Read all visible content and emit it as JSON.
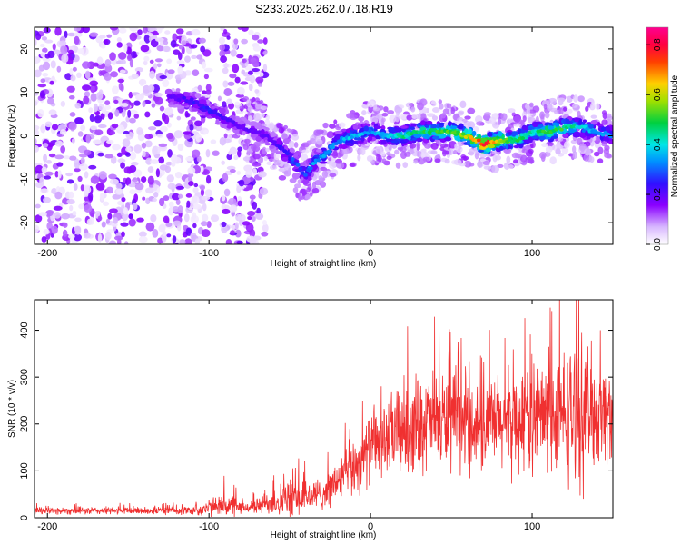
{
  "chart_data": [
    {
      "type": "heatmap",
      "title": "S233.2025.262.07.18.R19",
      "xlabel": "Height of straight line (km)",
      "ylabel": "Frequency (Hz)",
      "xlim": [
        -208,
        150
      ],
      "ylim": [
        -25,
        25
      ],
      "xticks": [
        -200,
        -100,
        0,
        100
      ],
      "xtick_labels": [
        "-200",
        "-100",
        "0",
        "100"
      ],
      "yticks": [
        -20,
        -10,
        0,
        10,
        20
      ],
      "ytick_labels": [
        "-20",
        "-10",
        "0",
        "10",
        "20"
      ],
      "colorbar": {
        "label": "Normalized spectral amplitude",
        "range": [
          0.0,
          0.87
        ],
        "ticks": [
          0.0,
          0.2,
          0.4,
          0.6,
          0.8
        ],
        "tick_labels": [
          "0.0",
          "0.2",
          "0.4",
          "0.6",
          "0.8"
        ],
        "colormap": "rainbow (white-violet-blue-cyan-green-yellow-red-magenta)"
      },
      "ridge": {
        "description": "frequency-vs-height trace of strongest amplitude",
        "x": [
          -125,
          -110,
          -95,
          -80,
          -65,
          -55,
          -45,
          -40,
          -35,
          -30,
          -20,
          -10,
          0,
          10,
          20,
          30,
          40,
          50,
          60,
          70,
          80,
          90,
          100,
          110,
          120,
          130,
          140,
          150
        ],
        "freq": [
          9,
          8,
          5,
          2,
          0,
          -3,
          -7,
          -9,
          -6,
          -5,
          -1,
          0,
          1,
          0,
          0,
          1,
          1,
          1,
          0,
          -2,
          -1,
          -1,
          1,
          1,
          2,
          2,
          1,
          0
        ],
        "amplitude": [
          0.2,
          0.25,
          0.25,
          0.2,
          0.2,
          0.25,
          0.3,
          0.3,
          0.35,
          0.35,
          0.35,
          0.4,
          0.35,
          0.4,
          0.45,
          0.5,
          0.5,
          0.55,
          0.6,
          0.85,
          0.6,
          0.5,
          0.45,
          0.55,
          0.5,
          0.4,
          0.35,
          0.35
        ]
      },
      "noise_region": {
        "x_range": [
          -208,
          -65
        ],
        "freq_range": [
          -25,
          25
        ],
        "amplitude_range": [
          0.02,
          0.2
        ]
      }
    },
    {
      "type": "line",
      "xlabel": "Height of straight line (km)",
      "ylabel": "SNR (10 * v/v)",
      "xlim": [
        -208,
        150
      ],
      "ylim": [
        0,
        465
      ],
      "xticks": [
        -200,
        -100,
        0,
        100
      ],
      "xtick_labels": [
        "-200",
        "-100",
        "0",
        "100"
      ],
      "yticks": [
        0,
        100,
        200,
        300,
        400
      ],
      "ytick_labels": [
        "0",
        "100",
        "200",
        "300",
        "400"
      ],
      "color": "#f03030",
      "series": [
        {
          "name": "SNR",
          "envelope_x": [
            -208,
            -150,
            -110,
            -100,
            -95,
            -90,
            -80,
            -70,
            -60,
            -50,
            -40,
            -30,
            -20,
            -10,
            0,
            10,
            20,
            30,
            40,
            50,
            60,
            70,
            80,
            90,
            100,
            110,
            120,
            130,
            140,
            150
          ],
          "mean": [
            15,
            15,
            16,
            20,
            25,
            28,
            20,
            25,
            35,
            40,
            45,
            50,
            80,
            110,
            150,
            170,
            190,
            200,
            210,
            205,
            200,
            195,
            200,
            210,
            220,
            215,
            220,
            225,
            230,
            220
          ],
          "spread": [
            10,
            10,
            12,
            25,
            15,
            45,
            15,
            20,
            40,
            50,
            50,
            40,
            60,
            80,
            90,
            100,
            130,
            130,
            130,
            130,
            120,
            120,
            130,
            140,
            150,
            150,
            170,
            200,
            150,
            120
          ]
        }
      ]
    }
  ]
}
